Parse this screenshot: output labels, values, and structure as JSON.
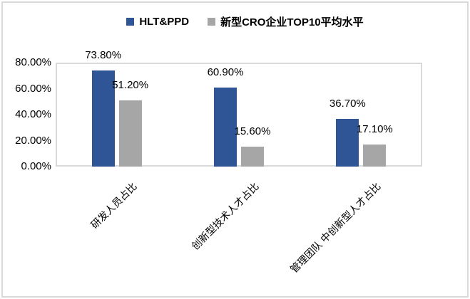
{
  "colors": {
    "series_blue": "#2F5597",
    "series_gray": "#A6A6A6",
    "frame": "#D9D9D9",
    "text": "#000000"
  },
  "chart_data": {
    "type": "bar",
    "title": "",
    "legend_position": "top",
    "grid": false,
    "categories": [
      "研发人员占比",
      "创新型技术人才占比",
      "管理团队 中创新型人才占比"
    ],
    "series": [
      {
        "name": "HLT&PPD",
        "color": "#2F5597",
        "values": [
          73.8,
          60.9,
          36.7
        ],
        "data_labels": [
          "73.80%",
          "60.90%",
          "36.70%"
        ]
      },
      {
        "name": "新型CRO企业TOP10平均水平",
        "color": "#A6A6A6",
        "values": [
          51.2,
          15.6,
          17.1
        ],
        "data_labels": [
          "51.20%",
          "15.60%",
          "17.10%"
        ]
      }
    ],
    "y_axis": {
      "min": 0,
      "max": 80,
      "tick_step": 20,
      "tick_labels": [
        "0.00%",
        "20.00%",
        "40.00%",
        "60.00%",
        "80.00%"
      ]
    }
  }
}
